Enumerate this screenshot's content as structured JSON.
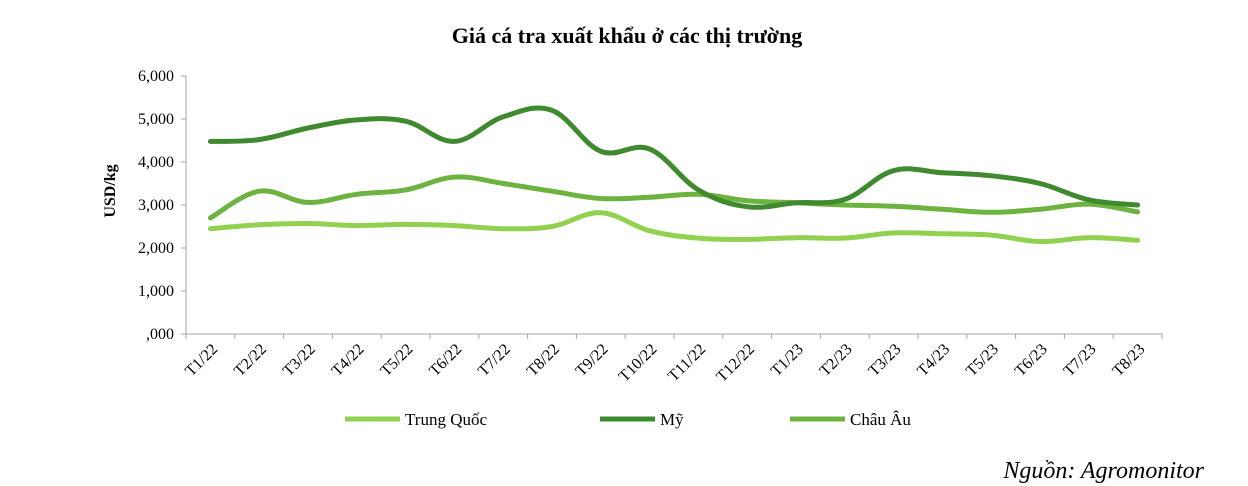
{
  "chart_data": {
    "type": "line",
    "title": "Giá cá tra xuất khẩu ở các thị trường",
    "ylabel": "USD/kg",
    "xlabel": "",
    "categories": [
      "T1/22",
      "T2/22",
      "T3/22",
      "T4/22",
      "T5/22",
      "T6/22",
      "T7/22",
      "T8/22",
      "T9/22",
      "T10/22",
      "T11/22",
      "T12/22",
      "T1/23",
      "T2/23",
      "T3/23",
      "T4/23",
      "T5/23",
      "T6/23",
      "T7/23",
      "T8/23"
    ],
    "ylim": [
      0,
      6000
    ],
    "yticks": [
      0,
      1000,
      2000,
      3000,
      4000,
      5000,
      6000
    ],
    "ytick_labels": [
      ",000",
      "1,000",
      "2,000",
      "3,000",
      "4,000",
      "5,000",
      "6,000"
    ],
    "grid": false,
    "legend_position": "bottom",
    "series": [
      {
        "name": "Trung Quốc",
        "color": "#92d050",
        "values": [
          2450,
          2540,
          2570,
          2520,
          2550,
          2520,
          2450,
          2500,
          2820,
          2400,
          2230,
          2200,
          2240,
          2230,
          2350,
          2330,
          2300,
          2150,
          2240,
          2180
        ]
      },
      {
        "name": "Mỹ",
        "color": "#3f8a2e",
        "values": [
          4480,
          4520,
          4790,
          4980,
          4950,
          4480,
          5050,
          5200,
          4250,
          4300,
          3350,
          2960,
          3050,
          3130,
          3800,
          3750,
          3680,
          3500,
          3120,
          3000
        ]
      },
      {
        "name": "Châu Âu",
        "color": "#6cb33f",
        "values": [
          2700,
          3320,
          3060,
          3250,
          3350,
          3650,
          3500,
          3320,
          3150,
          3180,
          3250,
          3100,
          3050,
          3000,
          2970,
          2900,
          2830,
          2900,
          3020,
          2840
        ]
      }
    ]
  },
  "source": "Nguồn: Agromonitor"
}
